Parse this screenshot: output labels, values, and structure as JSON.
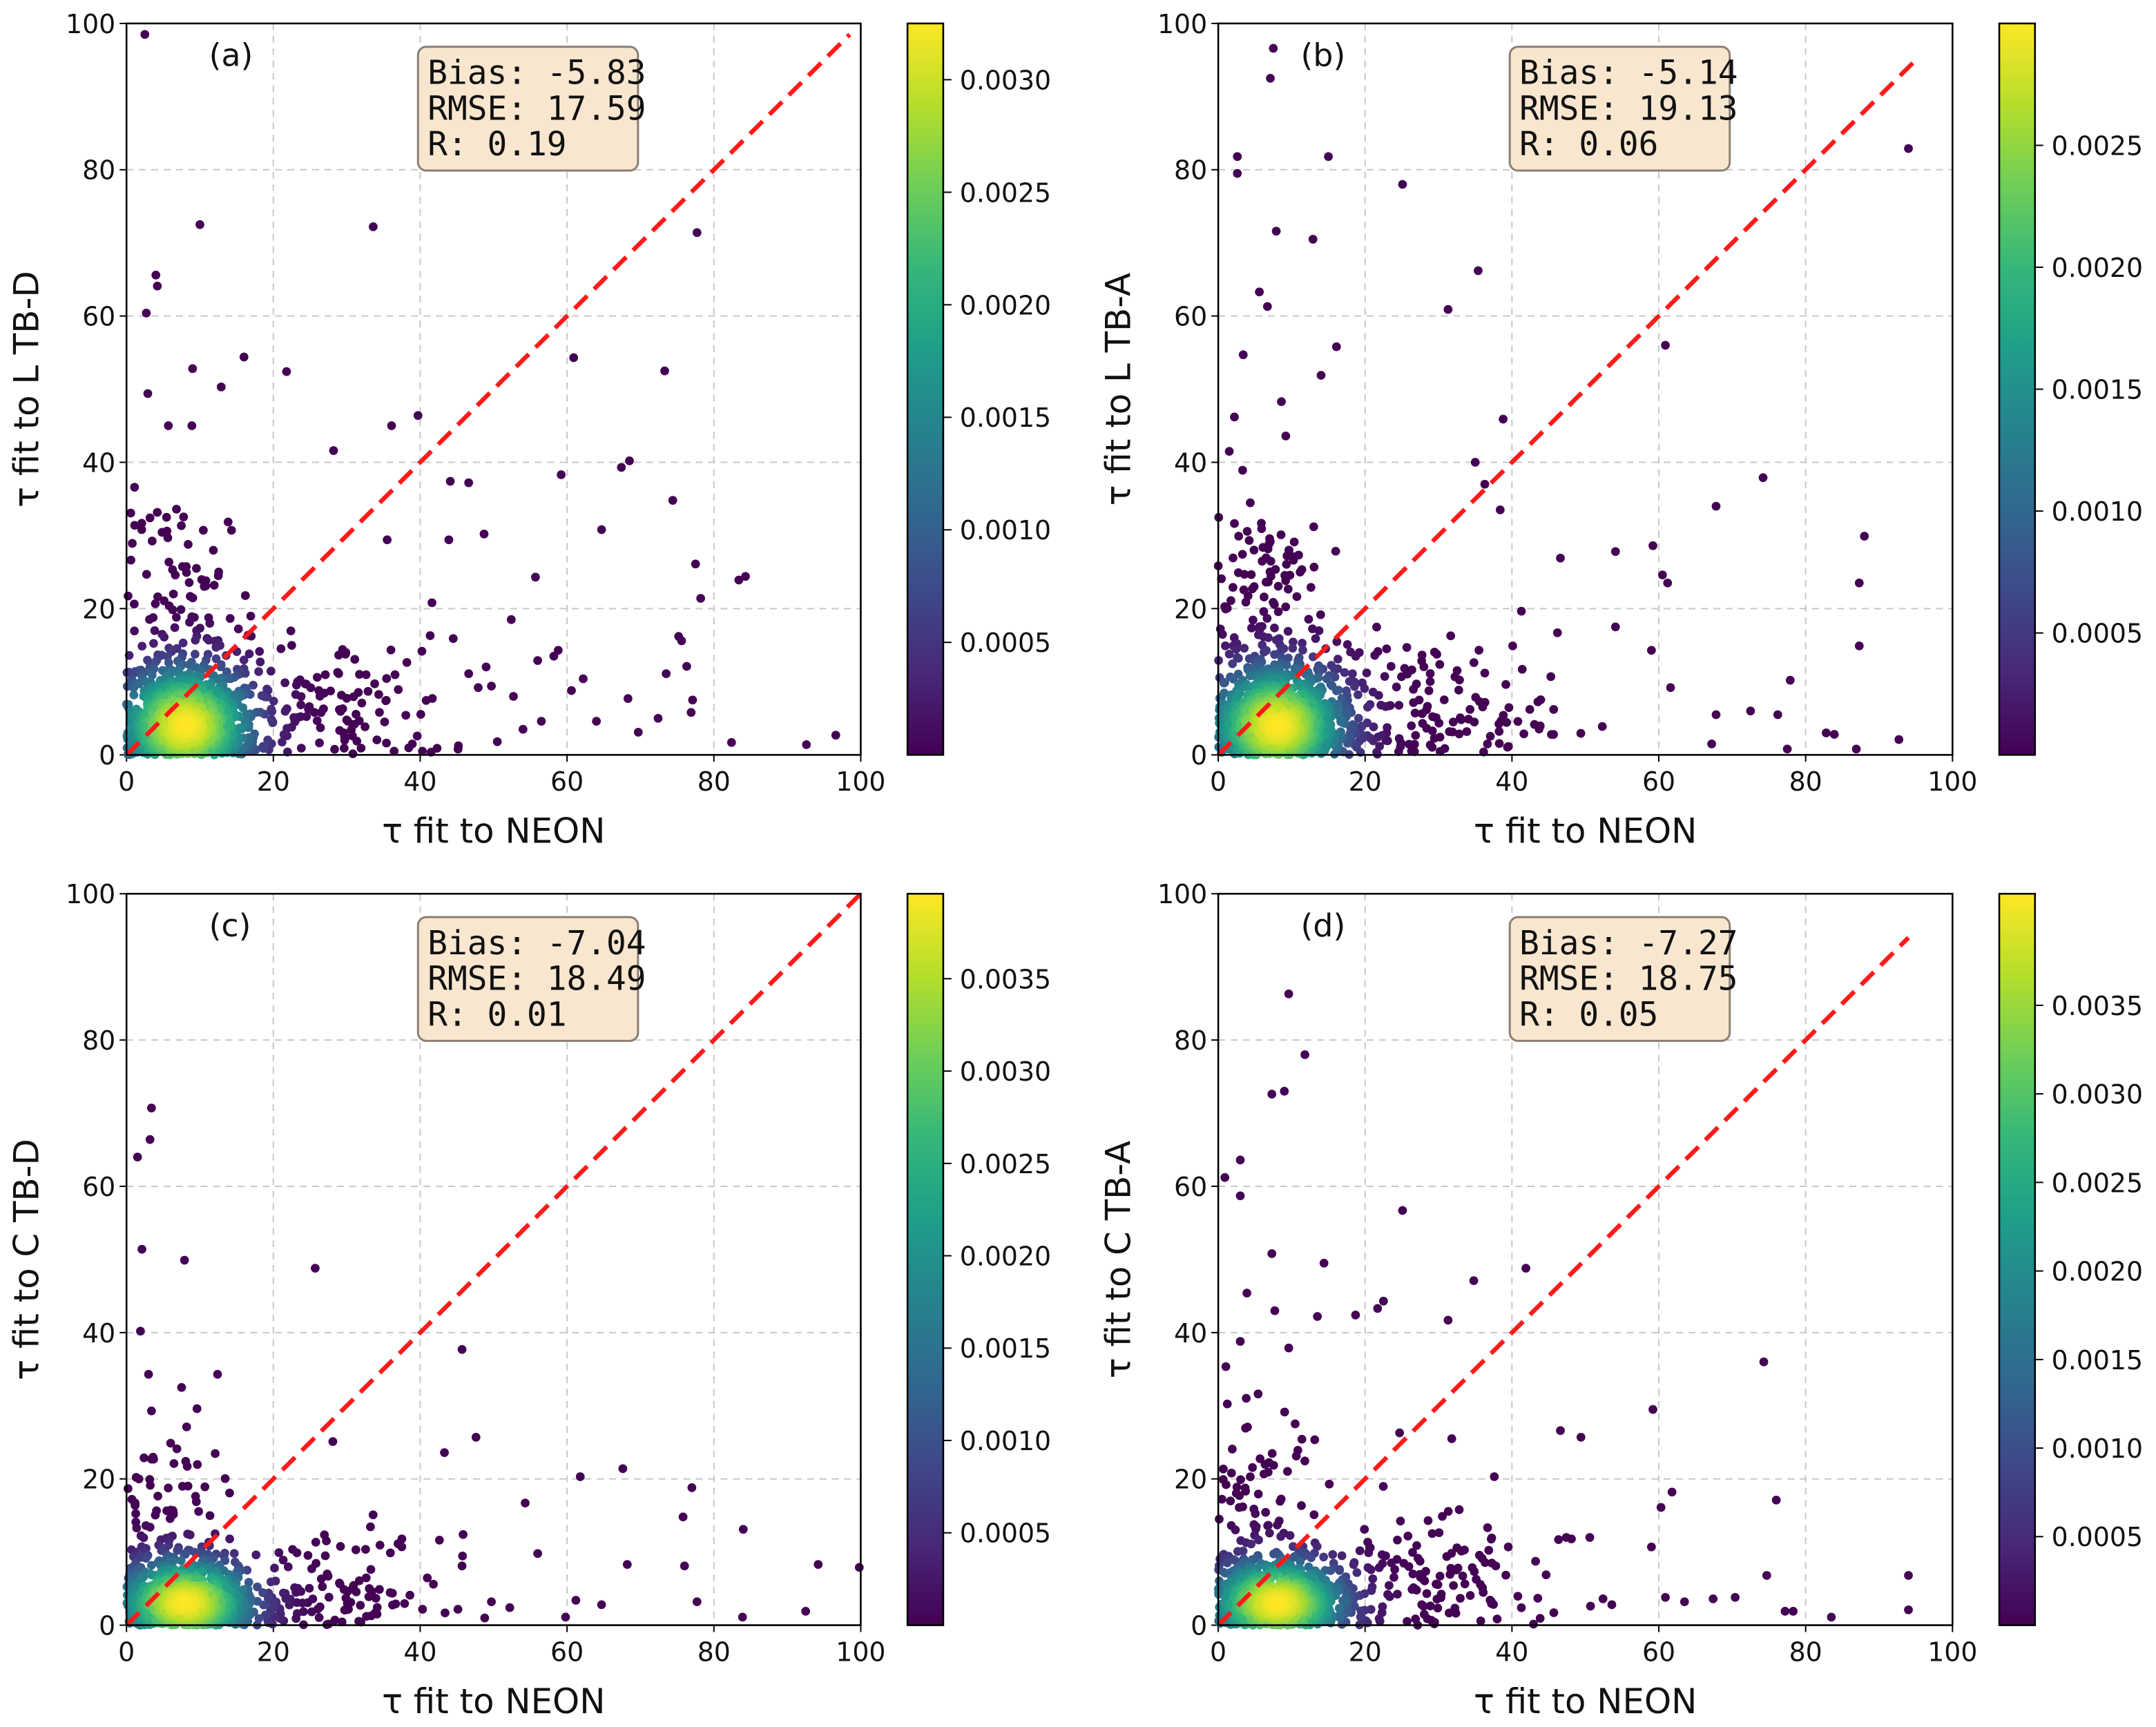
{
  "colors": {
    "diagonal": "#ff1a1a",
    "stats_box_fill": "#f9e6cf",
    "stats_box_edge": "#8a7f72",
    "viridis": [
      "#440154",
      "#482878",
      "#3e4989",
      "#31688e",
      "#26828e",
      "#1f9e89",
      "#35b779",
      "#6ece58",
      "#b5de2b",
      "#fde725"
    ]
  },
  "chart_data": [
    {
      "type": "scatter",
      "panel_label": "(a)",
      "xlabel": "τ  fit to NEON",
      "ylabel": "τ  fit to L TB-D",
      "xlim": [
        0,
        100
      ],
      "ylim": [
        0,
        100
      ],
      "xticks": [
        0,
        20,
        40,
        60,
        80,
        100
      ],
      "yticks": [
        0,
        20,
        40,
        60,
        80,
        100
      ],
      "grid": true,
      "stats": [
        "Bias: -5.83",
        "RMSE: 17.59",
        "R: 0.19"
      ],
      "diagonal_end": 98.5,
      "colorbar": {
        "range": [
          0,
          0.00325
        ],
        "ticks": [
          0.0005,
          0.001,
          0.0015,
          0.002,
          0.0025,
          0.003
        ],
        "tick_labels": [
          "0.0005",
          "0.0010",
          "0.0015",
          "0.0020",
          "0.0025",
          "0.0030"
        ]
      },
      "clusters": [
        {
          "cx": 8,
          "cy": 4,
          "sx": 5,
          "sy": 5,
          "n": 900,
          "core_sx": 4.5,
          "core_sy": 4
        },
        {
          "cx": 28,
          "cy": 6,
          "sx": 8,
          "sy": 5,
          "n": 120
        },
        {
          "cx": 8,
          "cy": 22,
          "sx": 5,
          "sy": 7,
          "n": 80
        }
      ],
      "outliers": [
        [
          2.5,
          98.5
        ],
        [
          10,
          72.5
        ],
        [
          33.6,
          72.2
        ],
        [
          77.7,
          71.4
        ],
        [
          4,
          65.6
        ],
        [
          4.2,
          64.1
        ],
        [
          2.7,
          60.4
        ],
        [
          9,
          52.8
        ],
        [
          16,
          54.4
        ],
        [
          21.8,
          52.4
        ],
        [
          12.9,
          50.3
        ],
        [
          2.9,
          49.4
        ],
        [
          60.9,
          54.3
        ],
        [
          73.3,
          52.5
        ],
        [
          39.7,
          46.4
        ],
        [
          36.1,
          45
        ],
        [
          5.7,
          45
        ],
        [
          8.9,
          45
        ],
        [
          28.2,
          41.6
        ],
        [
          59.2,
          38.3
        ],
        [
          68.5,
          40.2
        ],
        [
          67.4,
          39.3
        ],
        [
          44.1,
          37.4
        ],
        [
          46.6,
          37.2
        ],
        [
          74.4,
          34.8
        ],
        [
          64.7,
          30.8
        ],
        [
          48.7,
          30.2
        ],
        [
          43.9,
          29.4
        ],
        [
          35.5,
          29.4
        ],
        [
          55.7,
          24.3
        ],
        [
          77.5,
          26.1
        ],
        [
          83.4,
          23.9
        ],
        [
          84.3,
          24.4
        ],
        [
          78.2,
          21.4
        ],
        [
          52.4,
          18.5
        ],
        [
          75.2,
          16.2
        ],
        [
          75.6,
          15.6
        ],
        [
          56,
          12.9
        ],
        [
          58.2,
          13.5
        ],
        [
          58.8,
          14.3
        ],
        [
          73.5,
          11.1
        ],
        [
          76.3,
          12.1
        ],
        [
          62.2,
          10.4
        ],
        [
          60.6,
          8.8
        ],
        [
          68.3,
          7.7
        ],
        [
          77.1,
          7.5
        ],
        [
          72.4,
          5
        ],
        [
          76.9,
          5.8
        ],
        [
          64,
          4.6
        ],
        [
          56.5,
          4.6
        ],
        [
          54,
          3.5
        ],
        [
          69.7,
          3.1
        ],
        [
          50.5,
          1.8
        ],
        [
          82.4,
          1.7
        ],
        [
          92.6,
          1.4
        ],
        [
          96.6,
          2.7
        ],
        [
          40.3,
          0.5
        ],
        [
          42.3,
          0.9
        ],
        [
          41.6,
          20.8
        ],
        [
          44.5,
          15.9
        ],
        [
          49.7,
          9.4
        ],
        [
          47.9,
          9.2
        ],
        [
          52.7,
          8
        ],
        [
          46.6,
          11.1
        ]
      ]
    },
    {
      "type": "scatter",
      "panel_label": "(b)",
      "xlabel": "τ  fit to NEON",
      "ylabel": "τ  fit to L TB-A",
      "xlim": [
        0,
        100
      ],
      "ylim": [
        0,
        100
      ],
      "xticks": [
        0,
        20,
        40,
        60,
        80,
        100
      ],
      "yticks": [
        0,
        20,
        40,
        60,
        80,
        100
      ],
      "grid": true,
      "stats": [
        "Bias: -5.14",
        "RMSE: 19.13",
        "R: 0.06"
      ],
      "diagonal_end": 95.5,
      "colorbar": {
        "range": [
          0,
          0.003
        ],
        "ticks": [
          0.0005,
          0.001,
          0.0015,
          0.002,
          0.0025
        ],
        "tick_labels": [
          "0.0005",
          "0.0010",
          "0.0015",
          "0.0020",
          "0.0025"
        ]
      },
      "clusters": [
        {
          "cx": 8,
          "cy": 4,
          "sx": 5,
          "sy": 5,
          "n": 900,
          "core_sx": 4.5,
          "core_sy": 4
        },
        {
          "cx": 27,
          "cy": 6,
          "sx": 9,
          "sy": 5,
          "n": 150
        },
        {
          "cx": 6,
          "cy": 22,
          "sx": 4,
          "sy": 8,
          "n": 100
        }
      ],
      "outliers": [
        [
          7.5,
          96.6
        ],
        [
          7.1,
          92.5
        ],
        [
          2.6,
          81.8
        ],
        [
          2.6,
          79.5
        ],
        [
          15,
          81.8
        ],
        [
          25.1,
          78
        ],
        [
          94,
          82.9
        ],
        [
          7.9,
          71.6
        ],
        [
          12.9,
          70.5
        ],
        [
          5.6,
          63.3
        ],
        [
          6.7,
          61.3
        ],
        [
          35.4,
          66.2
        ],
        [
          31.3,
          60.9
        ],
        [
          3.4,
          54.7
        ],
        [
          16.1,
          55.8
        ],
        [
          60.9,
          56
        ],
        [
          14,
          51.9
        ],
        [
          8.6,
          48.3
        ],
        [
          2.2,
          46.2
        ],
        [
          38.8,
          45.9
        ],
        [
          9.2,
          43.6
        ],
        [
          1.5,
          41.5
        ],
        [
          35,
          40
        ],
        [
          74.2,
          37.9
        ],
        [
          67.8,
          34
        ],
        [
          36.3,
          37
        ],
        [
          38.4,
          33.5
        ],
        [
          88,
          29.9
        ],
        [
          59.2,
          28.6
        ],
        [
          54.1,
          27.8
        ],
        [
          46.6,
          26.9
        ],
        [
          60.5,
          24.6
        ],
        [
          61.2,
          23.5
        ],
        [
          87.3,
          23.5
        ],
        [
          46.2,
          16.7
        ],
        [
          54.1,
          17.5
        ],
        [
          59,
          14.3
        ],
        [
          87.3,
          14.9
        ],
        [
          77.9,
          10.2
        ],
        [
          61.6,
          9.2
        ],
        [
          67.8,
          5.5
        ],
        [
          72.5,
          6
        ],
        [
          76.2,
          5.5
        ],
        [
          82.8,
          3
        ],
        [
          83.9,
          2.8
        ],
        [
          92.7,
          2.1
        ],
        [
          86.9,
          0.8
        ],
        [
          77.5,
          0.8
        ],
        [
          67.2,
          1.5
        ],
        [
          41.4,
          11.7
        ],
        [
          40.1,
          14.9
        ],
        [
          45.3,
          10.7
        ]
      ]
    },
    {
      "type": "scatter",
      "panel_label": "(c)",
      "xlabel": "τ  fit to NEON",
      "ylabel": "τ  fit to C TB-D",
      "xlim": [
        0,
        100
      ],
      "ylim": [
        0,
        100
      ],
      "xticks": [
        0,
        20,
        40,
        60,
        80,
        100
      ],
      "yticks": [
        0,
        20,
        40,
        60,
        80,
        100
      ],
      "grid": true,
      "stats": [
        "Bias: -7.04",
        "RMSE: 18.49",
        "R: 0.01"
      ],
      "diagonal_end": 100,
      "colorbar": {
        "range": [
          0,
          0.00396
        ],
        "ticks": [
          0.0005,
          0.001,
          0.0015,
          0.002,
          0.0025,
          0.003,
          0.0035
        ],
        "tick_labels": [
          "0.0005",
          "0.0010",
          "0.0015",
          "0.0020",
          "0.0025",
          "0.0030",
          "0.0035"
        ]
      },
      "clusters": [
        {
          "cx": 8,
          "cy": 3,
          "sx": 5,
          "sy": 3.5,
          "n": 800,
          "core_sx": 4.5,
          "core_sy": 3
        },
        {
          "cx": 27,
          "cy": 4,
          "sx": 8,
          "sy": 4,
          "n": 120
        },
        {
          "cx": 5,
          "cy": 15,
          "sx": 4,
          "sy": 6,
          "n": 60
        }
      ],
      "outliers": [
        [
          3.4,
          70.7
        ],
        [
          3.2,
          66.4
        ],
        [
          1.5,
          64
        ],
        [
          2.1,
          51.4
        ],
        [
          7.9,
          49.9
        ],
        [
          25.7,
          48.8
        ],
        [
          1.9,
          40.2
        ],
        [
          45.7,
          37.7
        ],
        [
          3,
          34.3
        ],
        [
          12.4,
          34.3
        ],
        [
          7.5,
          32.5
        ],
        [
          3.4,
          29.3
        ],
        [
          9.6,
          29.6
        ],
        [
          28.1,
          25.1
        ],
        [
          47.6,
          25.7
        ],
        [
          43.3,
          23.6
        ],
        [
          61.8,
          20.3
        ],
        [
          67.6,
          21.4
        ],
        [
          77,
          18.8
        ],
        [
          75.8,
          14.8
        ],
        [
          54.3,
          16.7
        ],
        [
          56,
          9.8
        ],
        [
          84,
          13.1
        ],
        [
          99.8,
          7.9
        ],
        [
          94.2,
          8.3
        ],
        [
          68.2,
          8.3
        ],
        [
          76,
          8.1
        ],
        [
          77.7,
          3.2
        ],
        [
          83.9,
          1.1
        ],
        [
          92.5,
          1.9
        ],
        [
          64.7,
          2.8
        ],
        [
          61.2,
          3.4
        ],
        [
          59.8,
          1.1
        ],
        [
          49.7,
          3.2
        ],
        [
          52.2,
          2.4
        ],
        [
          38.6,
          4.1
        ],
        [
          41.8,
          5.6
        ],
        [
          37.5,
          11.8
        ],
        [
          45.7,
          8.1
        ]
      ]
    },
    {
      "type": "scatter",
      "panel_label": "(d)",
      "xlabel": "τ  fit to NEON",
      "ylabel": "τ  fit to C TB-A",
      "xlim": [
        0,
        100
      ],
      "ylim": [
        0,
        100
      ],
      "xticks": [
        0,
        20,
        40,
        60,
        80,
        100
      ],
      "yticks": [
        0,
        20,
        40,
        60,
        80,
        100
      ],
      "grid": true,
      "stats": [
        "Bias: -7.27",
        "RMSE: 18.75",
        "R: 0.05"
      ],
      "diagonal_end": 94,
      "colorbar": {
        "range": [
          0,
          0.00413
        ],
        "ticks": [
          0.0005,
          0.001,
          0.0015,
          0.002,
          0.0025,
          0.003,
          0.0035
        ],
        "tick_labels": [
          "0.0005",
          "0.0010",
          "0.0015",
          "0.0020",
          "0.0025",
          "0.0030",
          "0.0035"
        ]
      },
      "clusters": [
        {
          "cx": 8,
          "cy": 3,
          "sx": 5,
          "sy": 3.5,
          "n": 800,
          "core_sx": 4.5,
          "core_sy": 3
        },
        {
          "cx": 27,
          "cy": 5,
          "sx": 8,
          "sy": 5,
          "n": 130
        },
        {
          "cx": 5,
          "cy": 17,
          "sx": 4,
          "sy": 7,
          "n": 70
        }
      ],
      "outliers": [
        [
          9.6,
          86.3
        ],
        [
          11.8,
          78
        ],
        [
          9,
          73
        ],
        [
          7.3,
          72.6
        ],
        [
          3,
          63.6
        ],
        [
          0.9,
          61.2
        ],
        [
          3,
          58.7
        ],
        [
          25.1,
          56.7
        ],
        [
          7.3,
          50.8
        ],
        [
          14.4,
          49.5
        ],
        [
          41.9,
          48.8
        ],
        [
          3.9,
          45.4
        ],
        [
          34.8,
          47.1
        ],
        [
          7.7,
          43
        ],
        [
          13.5,
          42.2
        ],
        [
          18.7,
          42.4
        ],
        [
          21.7,
          43.3
        ],
        [
          22.5,
          44.3
        ],
        [
          31.3,
          41.7
        ],
        [
          9.6,
          37.9
        ],
        [
          74.3,
          36
        ],
        [
          3,
          38.8
        ],
        [
          59.2,
          29.5
        ],
        [
          46.6,
          26.6
        ],
        [
          49.4,
          25.7
        ],
        [
          24.7,
          26.3
        ],
        [
          31.8,
          25.5
        ],
        [
          37.6,
          20.3
        ],
        [
          76,
          17.1
        ],
        [
          61.8,
          18.2
        ],
        [
          60.3,
          16.1
        ],
        [
          47.4,
          12
        ],
        [
          48.1,
          11.8
        ],
        [
          50.6,
          12
        ],
        [
          59,
          10.7
        ],
        [
          94,
          6.8
        ],
        [
          74.7,
          6.8
        ],
        [
          70.4,
          3.8
        ],
        [
          67.4,
          3.6
        ],
        [
          60.9,
          3.8
        ],
        [
          63.5,
          3.2
        ],
        [
          52.4,
          3.6
        ],
        [
          53.6,
          2.8
        ],
        [
          45.7,
          1.7
        ],
        [
          50.7,
          2.6
        ],
        [
          77.2,
          1.9
        ],
        [
          78.3,
          1.9
        ],
        [
          83.5,
          1.1
        ],
        [
          94,
          2.1
        ],
        [
          39.5,
          10.7
        ],
        [
          37.8,
          8.1
        ]
      ]
    }
  ]
}
